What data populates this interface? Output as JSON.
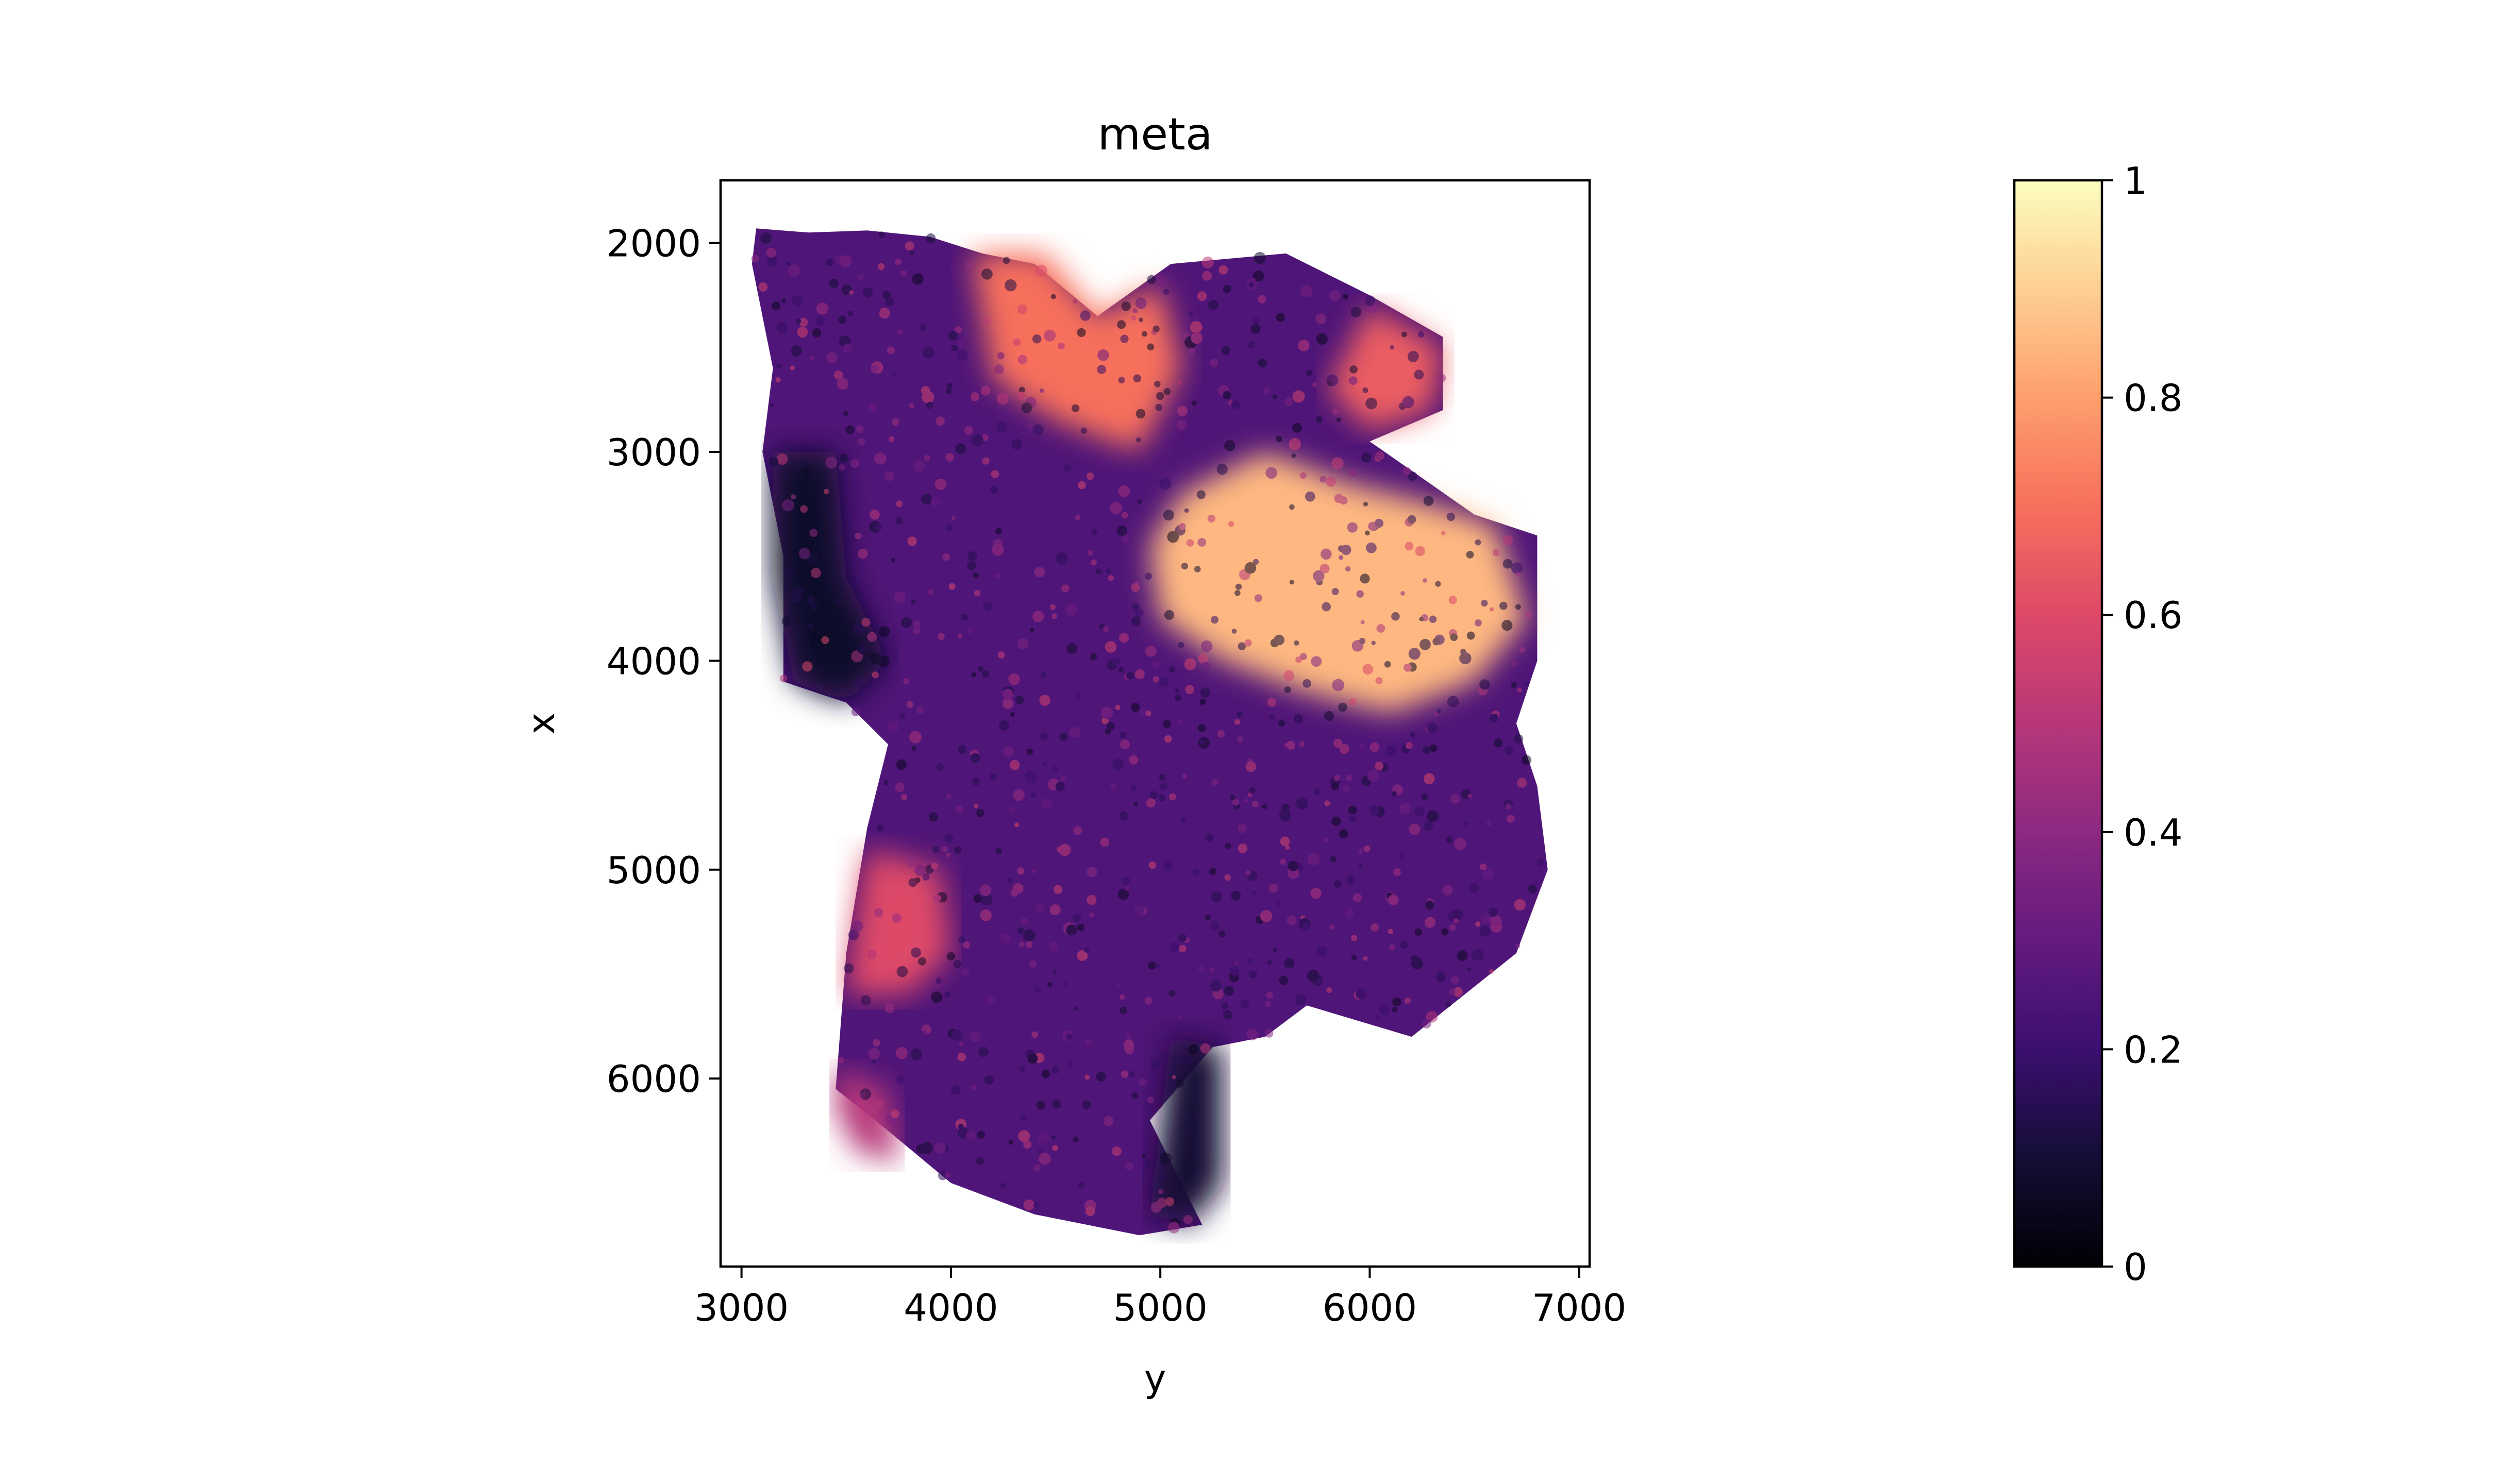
{
  "chart_data": {
    "type": "scatter",
    "title": "meta",
    "xlabel": "y",
    "ylabel": "x",
    "xlim": [
      2900,
      7050
    ],
    "ylim": [
      6900,
      1700
    ],
    "y_inverted": true,
    "xticks": [
      3000,
      4000,
      5000,
      6000,
      7000
    ],
    "xtick_labels": [
      "3000",
      "4000",
      "5000",
      "6000",
      "7000"
    ],
    "yticks": [
      2000,
      3000,
      4000,
      5000,
      6000
    ],
    "ytick_labels": [
      "2000",
      "3000",
      "4000",
      "5000",
      "6000"
    ],
    "grid": false,
    "colormap": "magma",
    "colorbar": {
      "min": 0,
      "max": 1,
      "ticks": [
        0,
        0.2,
        0.4,
        0.6,
        0.8,
        1
      ],
      "tick_labels": [
        "0",
        "0.2",
        "0.4",
        "0.6",
        "0.8",
        "1"
      ]
    },
    "regions": [
      {
        "name": "tissue-body",
        "value": 0.25,
        "outline": [
          [
            3070,
            1930
          ],
          [
            3320,
            1950
          ],
          [
            3600,
            1940
          ],
          [
            3900,
            1970
          ],
          [
            4150,
            2050
          ],
          [
            4400,
            2100
          ],
          [
            4700,
            2350
          ],
          [
            5050,
            2100
          ],
          [
            5600,
            2050
          ],
          [
            6000,
            2250
          ],
          [
            6350,
            2450
          ],
          [
            6350,
            2800
          ],
          [
            6000,
            2950
          ],
          [
            6500,
            3300
          ],
          [
            6800,
            3400
          ],
          [
            6800,
            4000
          ],
          [
            6700,
            4300
          ],
          [
            6800,
            4600
          ],
          [
            6850,
            5000
          ],
          [
            6700,
            5400
          ],
          [
            6200,
            5800
          ],
          [
            5700,
            5650
          ],
          [
            5500,
            5800
          ],
          [
            5250,
            5850
          ],
          [
            4950,
            6200
          ],
          [
            5200,
            6700
          ],
          [
            4900,
            6750
          ],
          [
            4400,
            6650
          ],
          [
            4000,
            6500
          ],
          [
            3700,
            6250
          ],
          [
            3450,
            6050
          ],
          [
            3500,
            5400
          ],
          [
            3600,
            4800
          ],
          [
            3700,
            4400
          ],
          [
            3500,
            4200
          ],
          [
            3200,
            4100
          ],
          [
            3200,
            3500
          ],
          [
            3100,
            3000
          ],
          [
            3150,
            2600
          ],
          [
            3050,
            2100
          ]
        ]
      },
      {
        "name": "upper-right-bright-zone",
        "value": 0.85,
        "outline": [
          [
            5100,
            3200
          ],
          [
            5500,
            3000
          ],
          [
            5900,
            3150
          ],
          [
            6300,
            3250
          ],
          [
            6600,
            3350
          ],
          [
            6750,
            3800
          ],
          [
            6500,
            4100
          ],
          [
            6100,
            4250
          ],
          [
            5700,
            4150
          ],
          [
            5300,
            4000
          ],
          [
            5000,
            3800
          ],
          [
            4950,
            3450
          ]
        ]
      },
      {
        "name": "top-lobe-orange",
        "value": 0.7,
        "outline": [
          [
            4100,
            2050
          ],
          [
            4450,
            2050
          ],
          [
            4700,
            2350
          ],
          [
            5000,
            2200
          ],
          [
            5100,
            2600
          ],
          [
            4900,
            3000
          ],
          [
            4500,
            2850
          ],
          [
            4200,
            2650
          ]
        ]
      },
      {
        "name": "right-lobe-orange",
        "value": 0.65,
        "outline": [
          [
            6000,
            2300
          ],
          [
            6350,
            2500
          ],
          [
            6300,
            2800
          ],
          [
            6000,
            2900
          ],
          [
            5800,
            2700
          ]
        ]
      },
      {
        "name": "left-lower-orange",
        "value": 0.6,
        "outline": [
          [
            3600,
            4900
          ],
          [
            3950,
            5000
          ],
          [
            4000,
            5400
          ],
          [
            3800,
            5600
          ],
          [
            3500,
            5600
          ],
          [
            3550,
            5200
          ]
        ]
      },
      {
        "name": "bottom-left-edge",
        "value": 0.5,
        "outline": [
          [
            3450,
            5950
          ],
          [
            3700,
            6050
          ],
          [
            3750,
            6400
          ],
          [
            3550,
            6350
          ],
          [
            3450,
            6150
          ]
        ]
      },
      {
        "name": "left-dark-band",
        "value": 0.08,
        "outline": [
          [
            3150,
            3000
          ],
          [
            3450,
            3000
          ],
          [
            3500,
            3600
          ],
          [
            3700,
            4000
          ],
          [
            3500,
            4200
          ],
          [
            3250,
            4100
          ],
          [
            3150,
            3600
          ]
        ]
      },
      {
        "name": "bottom-dark-fragment",
        "value": 0.1,
        "outline": [
          [
            5050,
            5800
          ],
          [
            5300,
            5850
          ],
          [
            5300,
            6500
          ],
          [
            5150,
            6700
          ],
          [
            4950,
            6650
          ]
        ]
      }
    ]
  }
}
